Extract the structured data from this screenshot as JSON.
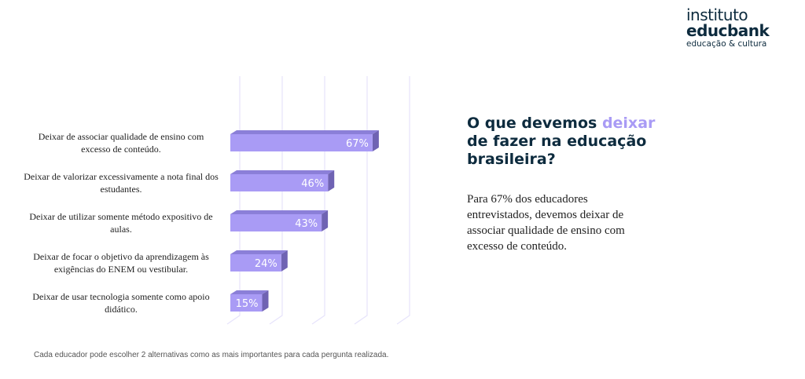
{
  "logo": {
    "line1": "instituto",
    "line2": "educbank",
    "line3": "educação & cultura"
  },
  "heading": {
    "pre": "O que devemos ",
    "highlight": "deixar",
    "post": " de fazer na educação brasileira?"
  },
  "description": "Para 67% dos educadores entrevistados, devemos deixar de associar qualidade de ensino com excesso de conteúdo.",
  "footnote": "Cada educador pode escolher 2 alternativas como as mais importantes para cada pergunta realizada.",
  "colors": {
    "bar_front": "#a99bf5",
    "bar_top": "#8b7fd8",
    "bar_side": "#6f63b3",
    "grid": "#e6e3fb",
    "accent": "#a99bf5"
  },
  "chart_data": {
    "type": "bar",
    "orientation": "horizontal",
    "categories": [
      "Deixar de associar qualidade de ensino com excesso de conteúdo.",
      "Deixar de valorizar excessivamente a nota final dos estudantes.",
      "Deixar de utilizar somente método expositivo de aulas.",
      "Deixar de focar o objetivo da aprendizagem às exigências do ENEM ou vestibular.",
      "Deixar de usar tecnologia somente como apoio didático."
    ],
    "values": [
      67,
      46,
      43,
      24,
      15
    ],
    "labels": [
      "67%",
      "46%",
      "43%",
      "24%",
      "15%"
    ],
    "xlim": [
      0,
      100
    ],
    "grid": true,
    "unit": "%"
  }
}
